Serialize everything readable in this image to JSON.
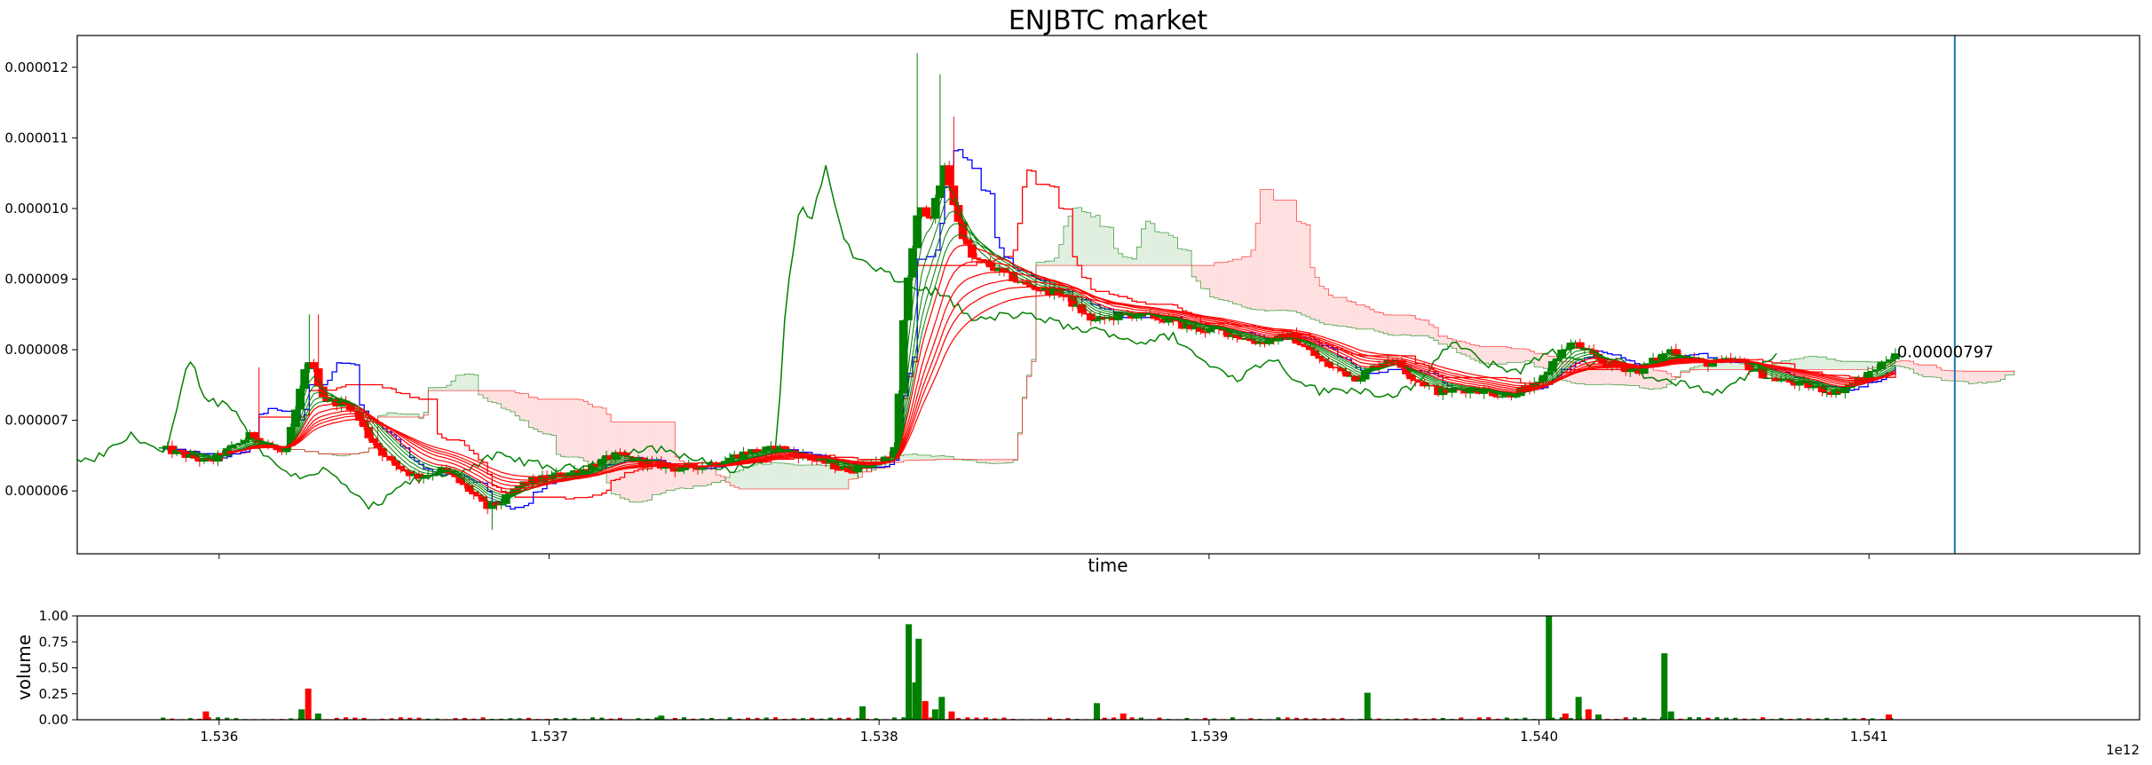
{
  "chart_data": [
    {
      "type": "candlestick",
      "title": "ENJBTC market",
      "xlabel": "time",
      "ylabel": "",
      "xlim": [
        1535570000000.0,
        1541820000000.0
      ],
      "ylim": [
        5.11e-06,
        1.245e-05
      ],
      "x_ticks": [
        1536000000000.0,
        1537000000000.0,
        1538000000000.0,
        1539000000000.0,
        1540000000000.0,
        1541000000000.0
      ],
      "y_ticks": [
        {
          "value": 6e-06,
          "label": "0.000006"
        },
        {
          "value": 7e-06,
          "label": "0.000007"
        },
        {
          "value": 8e-06,
          "label": "0.000008"
        },
        {
          "value": 9e-06,
          "label": "0.000009"
        },
        {
          "value": 1e-05,
          "label": "0.000010"
        },
        {
          "value": 1.1e-05,
          "label": "0.000011"
        },
        {
          "value": 1.2e-05,
          "label": "0.000012"
        }
      ],
      "annotation": {
        "text": "0.00000797",
        "x": 1541085000000.0,
        "y": 7.97e-06
      },
      "vertical_line": {
        "x": 1541260000000.0,
        "color": "#1f77b4"
      },
      "colors": {
        "up": "#008000",
        "down": "#ff0000",
        "tenkan": "#0000ff",
        "chikou": "#008000",
        "ema": "#ff0000",
        "cloud_bear": "#ffcccc",
        "cloud_bull": "#cce5cc"
      },
      "price_anchors": [
        [
          1535830000000.0,
          6.6e-06
        ],
        [
          1535970000000.0,
          6.4e-06
        ],
        [
          1536100000000.0,
          6.8e-06
        ],
        [
          1536200000000.0,
          6.5e-06
        ],
        [
          1536270000000.0,
          7.9e-06
        ],
        [
          1536320000000.0,
          7.3e-06
        ],
        [
          1536400000000.0,
          7.2e-06
        ],
        [
          1536450000000.0,
          6.8e-06
        ],
        [
          1536520000000.0,
          6.4e-06
        ],
        [
          1536600000000.0,
          6.2e-06
        ],
        [
          1536680000000.0,
          6.3e-06
        ],
        [
          1536760000000.0,
          6e-06
        ],
        [
          1536810000000.0,
          5.75e-06
        ],
        [
          1536860000000.0,
          5.85e-06
        ],
        [
          1536920000000.0,
          6.1e-06
        ],
        [
          1537000000000.0,
          6.2e-06
        ],
        [
          1537100000000.0,
          6.3e-06
        ],
        [
          1537200000000.0,
          6.5e-06
        ],
        [
          1537300000000.0,
          6.4e-06
        ],
        [
          1537400000000.0,
          6.3e-06
        ],
        [
          1537500000000.0,
          6.4e-06
        ],
        [
          1537600000000.0,
          6.55e-06
        ],
        [
          1537700000000.0,
          6.6e-06
        ],
        [
          1537800000000.0,
          6.45e-06
        ],
        [
          1537900000000.0,
          6.3e-06
        ],
        [
          1538000000000.0,
          6.4e-06
        ],
        [
          1538050000000.0,
          6.6e-06
        ],
        [
          1538080000000.0,
          8.8e-06
        ],
        [
          1538120000000.0,
          1e-05
        ],
        [
          1538160000000.0,
          9.9e-06
        ],
        [
          1538200000000.0,
          1.06e-05
        ],
        [
          1538240000000.0,
          9.8e-06
        ],
        [
          1538280000000.0,
          9.3e-06
        ],
        [
          1538350000000.0,
          9.15e-06
        ],
        [
          1538450000000.0,
          8.9e-06
        ],
        [
          1538550000000.0,
          8.8e-06
        ],
        [
          1538650000000.0,
          8.4e-06
        ],
        [
          1538750000000.0,
          8.5e-06
        ],
        [
          1538850000000.0,
          8.45e-06
        ],
        [
          1538950000000.0,
          8.3e-06
        ],
        [
          1539050000000.0,
          8.25e-06
        ],
        [
          1539150000000.0,
          8.1e-06
        ],
        [
          1539250000000.0,
          8.2e-06
        ],
        [
          1539350000000.0,
          7.8e-06
        ],
        [
          1539450000000.0,
          7.6e-06
        ],
        [
          1539550000000.0,
          7.9e-06
        ],
        [
          1539620000000.0,
          7.6e-06
        ],
        [
          1539700000000.0,
          7.4e-06
        ],
        [
          1539800000000.0,
          7.45e-06
        ],
        [
          1539900000000.0,
          7.35e-06
        ],
        [
          1540000000000.0,
          7.5e-06
        ],
        [
          1540050000000.0,
          7.9e-06
        ],
        [
          1540100000000.0,
          8.1e-06
        ],
        [
          1540200000000.0,
          7.8e-06
        ],
        [
          1540300000000.0,
          7.7e-06
        ],
        [
          1540400000000.0,
          8e-06
        ],
        [
          1540500000000.0,
          7.8e-06
        ],
        [
          1540600000000.0,
          7.85e-06
        ],
        [
          1540700000000.0,
          7.6e-06
        ],
        [
          1540800000000.0,
          7.5e-06
        ],
        [
          1540900000000.0,
          7.4e-06
        ],
        [
          1541000000000.0,
          7.65e-06
        ],
        [
          1541080000000.0,
          7.97e-06
        ]
      ]
    },
    {
      "type": "bar",
      "title": "",
      "xlabel": "",
      "ylabel": "volume",
      "xlim": [
        1535570000000.0,
        1541820000000.0
      ],
      "ylim": [
        0,
        1.0
      ],
      "x_ticks": [
        {
          "value": 1536000000000.0,
          "label": "1.536"
        },
        {
          "value": 1537000000000.0,
          "label": "1.537"
        },
        {
          "value": 1538000000000.0,
          "label": "1.538"
        },
        {
          "value": 1539000000000.0,
          "label": "1.539"
        },
        {
          "value": 1540000000000.0,
          "label": "1.540"
        },
        {
          "value": 1541000000000.0,
          "label": "1.541"
        }
      ],
      "x_offset_label": "1e12",
      "y_ticks": [
        {
          "value": 0.0,
          "label": "0.00"
        },
        {
          "value": 0.25,
          "label": "0.25"
        },
        {
          "value": 0.5,
          "label": "0.50"
        },
        {
          "value": 0.75,
          "label": "0.75"
        },
        {
          "value": 1.0,
          "label": "1.00"
        }
      ],
      "bars": [
        {
          "x": 1535960000000.0,
          "value": 0.08,
          "color": "#ff0000"
        },
        {
          "x": 1536250000000.0,
          "value": 0.1,
          "color": "#008000"
        },
        {
          "x": 1536270000000.0,
          "value": 0.3,
          "color": "#ff0000"
        },
        {
          "x": 1536300000000.0,
          "value": 0.06,
          "color": "#008000"
        },
        {
          "x": 1537340000000.0,
          "value": 0.04,
          "color": "#008000"
        },
        {
          "x": 1537950000000.0,
          "value": 0.13,
          "color": "#008000"
        },
        {
          "x": 1538090000000.0,
          "value": 0.92,
          "color": "#008000"
        },
        {
          "x": 1538110000000.0,
          "value": 0.36,
          "color": "#008000"
        },
        {
          "x": 1538120000000.0,
          "value": 0.78,
          "color": "#008000"
        },
        {
          "x": 1538140000000.0,
          "value": 0.18,
          "color": "#ff0000"
        },
        {
          "x": 1538170000000.0,
          "value": 0.1,
          "color": "#008000"
        },
        {
          "x": 1538190000000.0,
          "value": 0.22,
          "color": "#008000"
        },
        {
          "x": 1538220000000.0,
          "value": 0.08,
          "color": "#ff0000"
        },
        {
          "x": 1538660000000.0,
          "value": 0.16,
          "color": "#008000"
        },
        {
          "x": 1538740000000.0,
          "value": 0.06,
          "color": "#ff0000"
        },
        {
          "x": 1539480000000.0,
          "value": 0.26,
          "color": "#008000"
        },
        {
          "x": 1540030000000.0,
          "value": 1.0,
          "color": "#008000"
        },
        {
          "x": 1540080000000.0,
          "value": 0.06,
          "color": "#ff0000"
        },
        {
          "x": 1540120000000.0,
          "value": 0.22,
          "color": "#008000"
        },
        {
          "x": 1540150000000.0,
          "value": 0.1,
          "color": "#ff0000"
        },
        {
          "x": 1540180000000.0,
          "value": 0.05,
          "color": "#008000"
        },
        {
          "x": 1540380000000.0,
          "value": 0.64,
          "color": "#008000"
        },
        {
          "x": 1540400000000.0,
          "value": 0.08,
          "color": "#008000"
        },
        {
          "x": 1541060000000.0,
          "value": 0.05,
          "color": "#ff0000"
        }
      ]
    }
  ]
}
